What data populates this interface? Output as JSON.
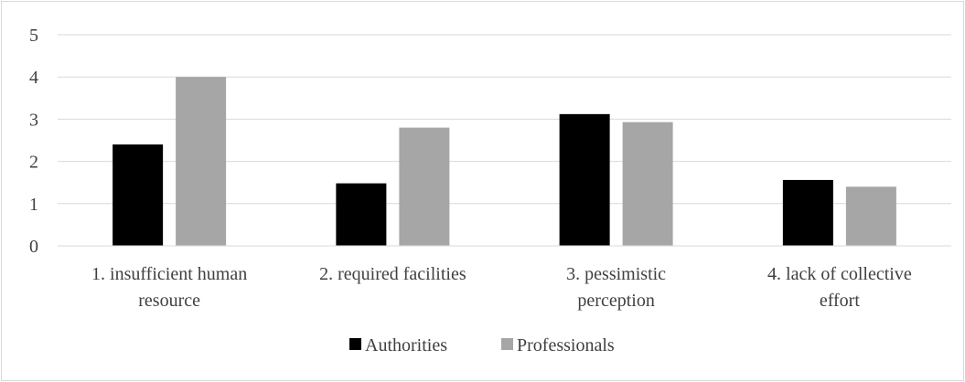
{
  "chart_data": {
    "type": "bar",
    "categories": [
      [
        "1. insufficient human",
        "resource"
      ],
      [
        "2. required facilities"
      ],
      [
        "3. pessimistic",
        "perception"
      ],
      [
        "4. lack of collective",
        "effort"
      ]
    ],
    "series": [
      {
        "name": "Authorities",
        "values": [
          2.4,
          1.48,
          3.12,
          1.56
        ],
        "color": "#000000"
      },
      {
        "name": "Professionals",
        "values": [
          4.0,
          2.8,
          2.93,
          1.4
        ],
        "color": "#a6a6a6"
      }
    ],
    "ylim": [
      0,
      5
    ],
    "yticks": [
      "0",
      "1",
      "2",
      "3",
      "4",
      "5"
    ],
    "grid": true,
    "legend_position": "bottom",
    "title": "",
    "xlabel": "",
    "ylabel": ""
  }
}
